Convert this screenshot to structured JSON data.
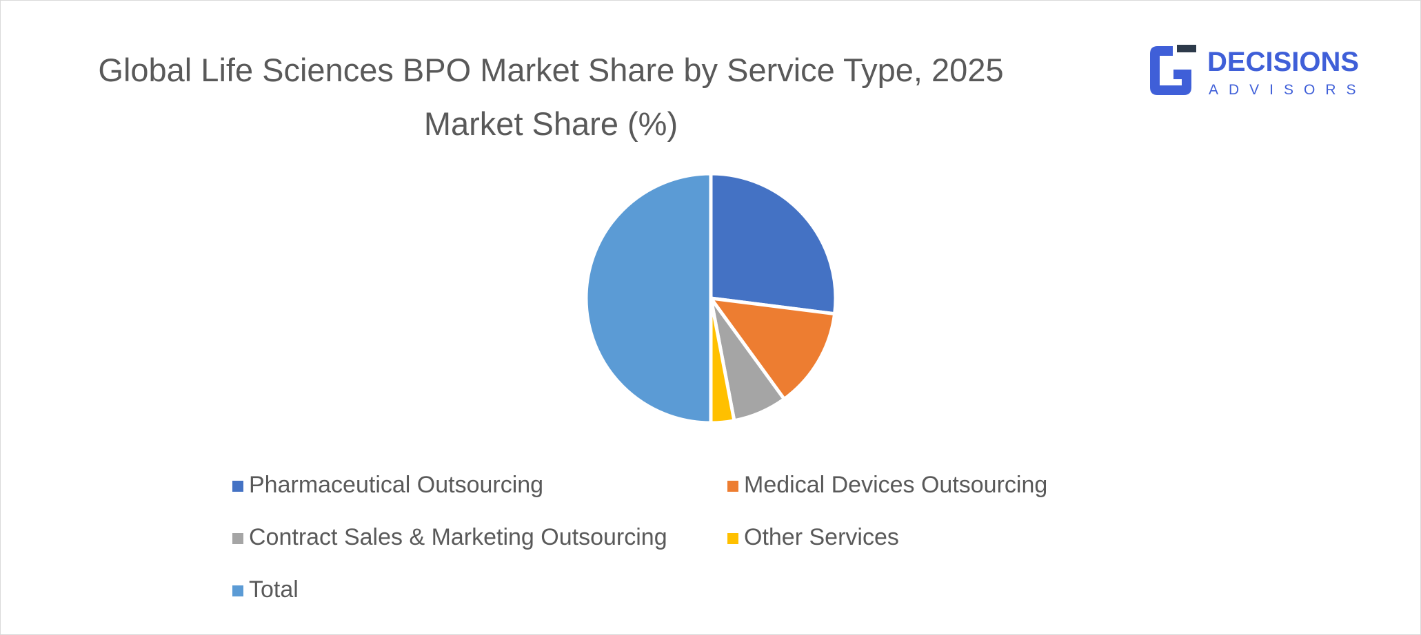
{
  "logo": {
    "name": "DECISIONS",
    "tagline": "ADVISORS"
  },
  "chart_data": {
    "type": "pie",
    "title": "Global Life Sciences BPO Market Share by Service Type, 2025 Market Share (%)",
    "categories": [
      "Pharmaceutical Outsourcing",
      "Medical Devices Outsourcing",
      "Contract Sales & Marketing Outsourcing",
      "Other Services",
      "Total"
    ],
    "values": [
      27,
      13,
      7,
      3,
      50
    ],
    "colors": [
      "#4472c4",
      "#ed7d31",
      "#a5a5a5",
      "#ffc000",
      "#5b9bd5"
    ],
    "legend": "bottom"
  }
}
